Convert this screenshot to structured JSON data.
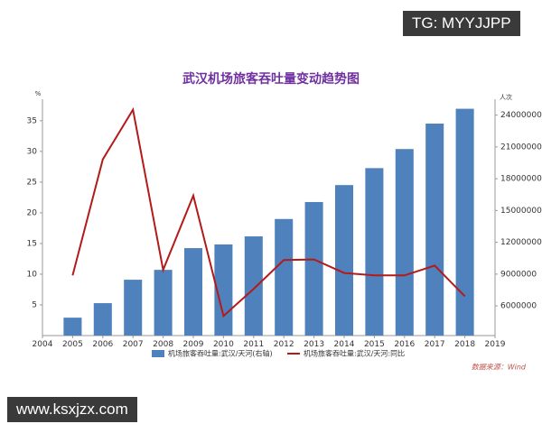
{
  "chart_data": {
    "type": "bar_line",
    "title": "武汉机场旅客吞吐量变动趋势图",
    "y_label": "%",
    "y2_label": "人次",
    "source": "数据来源：Wind",
    "x": [
      2005,
      2006,
      2007,
      2008,
      2009,
      2010,
      2011,
      2012,
      2013,
      2014,
      2015,
      2016,
      2017,
      2018
    ],
    "xlim": [
      2004,
      2019
    ],
    "xticks": [
      2004,
      2005,
      2006,
      2007,
      2008,
      2009,
      2010,
      2011,
      2012,
      2013,
      2014,
      2015,
      2016,
      2017,
      2018,
      2019
    ],
    "ylim": [
      0,
      38.5
    ],
    "yticks": [
      5,
      10,
      15,
      20,
      25,
      30,
      35
    ],
    "y2lim": [
      3200000,
      25500000
    ],
    "y2ticks": [
      6000000,
      9000000,
      12000000,
      15000000,
      18000000,
      21000000,
      24000000
    ],
    "series": [
      {
        "name": "机场旅客吞吐量:武汉/天河(右轴)",
        "type": "bar",
        "axis": "y2",
        "color": "#4f81bd",
        "values": [
          4890000,
          6260000,
          8470000,
          9400000,
          11450000,
          11800000,
          12560000,
          14200000,
          15800000,
          17400000,
          19000000,
          20800000,
          23200000,
          24600000
        ]
      },
      {
        "name": "机场旅客吞吐量:武汉/天河:同比",
        "type": "line",
        "color": "#b31b1b",
        "values": [
          9.8,
          28.7,
          36.8,
          10.7,
          22.8,
          3.2,
          7.6,
          12.3,
          12.4,
          10.2,
          9.8,
          9.8,
          11.4,
          6.4
        ]
      }
    ]
  },
  "watermarks": {
    "top": "TG: MYYJJPP",
    "bottom": "www.ksxjzx.com"
  }
}
